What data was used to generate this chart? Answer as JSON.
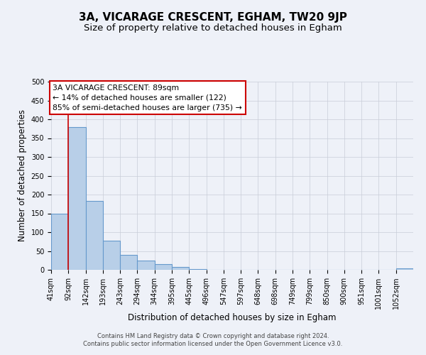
{
  "title": "3A, VICARAGE CRESCENT, EGHAM, TW20 9JP",
  "subtitle": "Size of property relative to detached houses in Egham",
  "xlabel": "Distribution of detached houses by size in Egham",
  "ylabel": "Number of detached properties",
  "bar_labels": [
    "41sqm",
    "92sqm",
    "142sqm",
    "193sqm",
    "243sqm",
    "294sqm",
    "344sqm",
    "395sqm",
    "445sqm",
    "496sqm",
    "547sqm",
    "597sqm",
    "648sqm",
    "698sqm",
    "749sqm",
    "799sqm",
    "850sqm",
    "900sqm",
    "951sqm",
    "1001sqm",
    "1052sqm"
  ],
  "bar_values": [
    150,
    380,
    183,
    78,
    40,
    25,
    15,
    7,
    1,
    0,
    0,
    0,
    0,
    0,
    0,
    0,
    0,
    0,
    0,
    0,
    4
  ],
  "bar_color": "#b8cfe8",
  "bar_edgecolor": "#6699cc",
  "ylim": [
    0,
    500
  ],
  "yticks": [
    0,
    50,
    100,
    150,
    200,
    250,
    300,
    350,
    400,
    450,
    500
  ],
  "vline_x": 1,
  "vline_color": "#cc0000",
  "annotation_line1": "3A VICARAGE CRESCENT: 89sqm",
  "annotation_line2": "← 14% of detached houses are smaller (122)",
  "annotation_line3": "85% of semi-detached houses are larger (735) →",
  "footer_line1": "Contains HM Land Registry data © Crown copyright and database right 2024.",
  "footer_line2": "Contains public sector information licensed under the Open Government Licence v3.0.",
  "background_color": "#eef1f8",
  "grid_color": "#c8cdd8",
  "title_fontsize": 11,
  "subtitle_fontsize": 9.5,
  "axis_label_fontsize": 8.5,
  "tick_fontsize": 7,
  "annotation_fontsize": 7.8,
  "footer_fontsize": 6
}
